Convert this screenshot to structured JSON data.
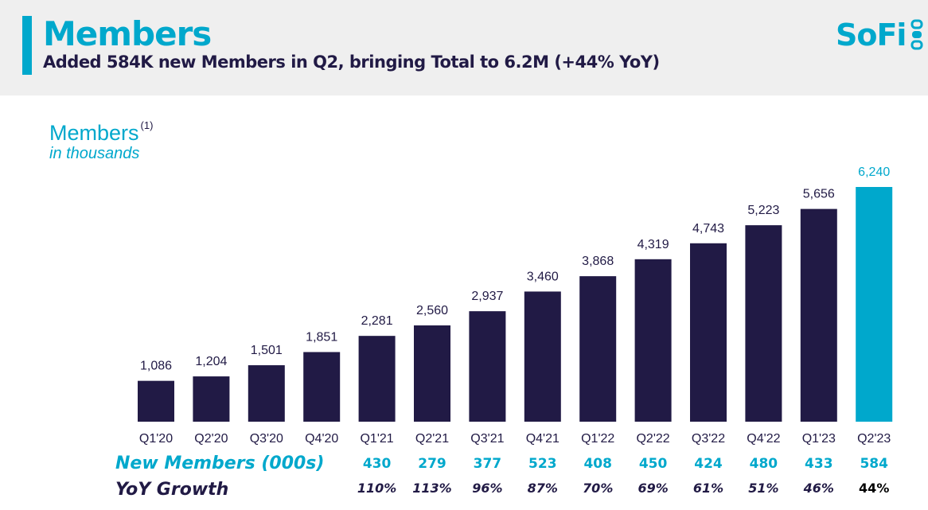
{
  "header": {
    "title": "Members",
    "subtitle": "Added 584K new Members in Q2, bringing Total to 6.2M (+44% YoY)",
    "logo_text": "SoFi"
  },
  "chart_data": {
    "type": "bar",
    "title": "Members",
    "title_footnote": "(1)",
    "unit_label": "in thousands",
    "categories": [
      "Q1'20",
      "Q2'20",
      "Q3'20",
      "Q4'20",
      "Q1'21",
      "Q2'21",
      "Q3'21",
      "Q4'21",
      "Q1'22",
      "Q2'22",
      "Q3'22",
      "Q4'22",
      "Q1'23",
      "Q2'23"
    ],
    "values": [
      1086,
      1204,
      1501,
      1851,
      2281,
      2560,
      2937,
      3460,
      3868,
      4319,
      4743,
      5223,
      5656,
      6240
    ],
    "value_labels": [
      "1,086",
      "1,204",
      "1,501",
      "1,851",
      "2,281",
      "2,560",
      "2,937",
      "3,460",
      "3,868",
      "4,319",
      "4,743",
      "5,223",
      "5,656",
      "6,240"
    ],
    "ylim": [
      0,
      6240
    ],
    "grid": false,
    "bar_color": "#211a45",
    "highlight_color": "#00a8cc",
    "highlight_index": 13,
    "table_rows": [
      {
        "label": "New Members (000s)",
        "start_index": 4,
        "values": [
          "430",
          "279",
          "377",
          "523",
          "408",
          "450",
          "424",
          "480",
          "433",
          "584"
        ],
        "color": "#00a8cc"
      },
      {
        "label": "YoY Growth",
        "start_index": 4,
        "values": [
          "110%",
          "113%",
          "96%",
          "87%",
          "70%",
          "69%",
          "61%",
          "51%",
          "46%",
          "44%"
        ],
        "color": "#211a45"
      }
    ]
  },
  "colors": {
    "accent": "#00a8cc",
    "navy": "#211a45",
    "header_bg": "#efefef"
  }
}
